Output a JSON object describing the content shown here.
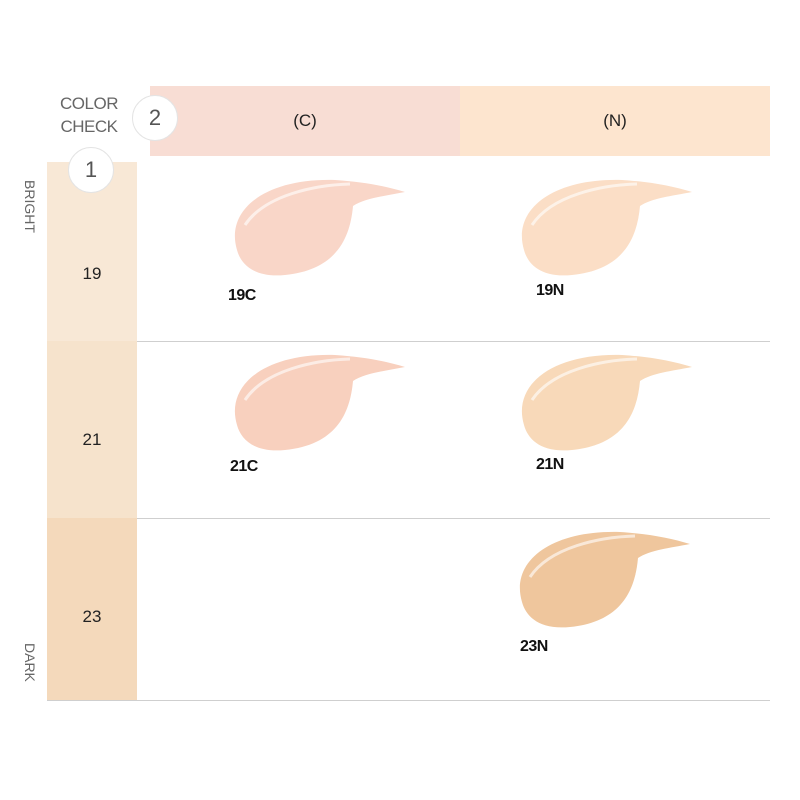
{
  "title": {
    "line1": "COLOR",
    "line2": "CHECK"
  },
  "steps": {
    "tone_step": "2",
    "level_step": "1"
  },
  "columns": [
    {
      "label": "(C)",
      "color": "#f8ddd4"
    },
    {
      "label": "(N)",
      "color": "#fde5cf"
    }
  ],
  "scale": {
    "top": "BRIGHT",
    "bottom": "DARK"
  },
  "rows": [
    {
      "label": "19",
      "color": "#f8e8d6"
    },
    {
      "label": "21",
      "color": "#f6e3cc"
    },
    {
      "label": "23",
      "color": "#f4d9bb"
    }
  ],
  "swatches": [
    {
      "name": "19C",
      "color": "#f9d6c8"
    },
    {
      "name": "19N",
      "color": "#fbdec6"
    },
    {
      "name": "21C",
      "color": "#f8d0be"
    },
    {
      "name": "21N",
      "color": "#f8d9b9"
    },
    {
      "name": "23N",
      "color": "#efc69d"
    }
  ]
}
